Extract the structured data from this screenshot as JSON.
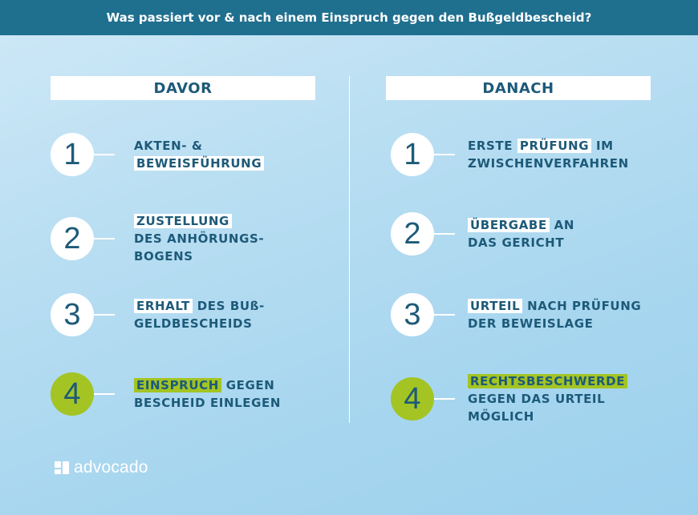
{
  "title": "Was passiert vor & nach einem Einspruch gegen den Bußgeldbescheid?",
  "columns": [
    {
      "header": "DAVOR",
      "steps": [
        {
          "number": "1",
          "lines": [
            [
              "AKTEN- &"
            ],
            [
              "BEWEISFÜHRUNG"
            ]
          ]
        },
        {
          "number": "2",
          "lines": [
            [
              "ZUSTELLUNG"
            ],
            [
              "DES ANHÖRUNGS-"
            ],
            [
              "BOGENS"
            ]
          ]
        },
        {
          "number": "3",
          "lines": [
            [
              "ERHALT",
              " DES BUß-"
            ],
            [
              "GELDBESCHEIDS"
            ]
          ]
        },
        {
          "number": "4",
          "lines": [
            [
              "EINSPRUCH",
              " GEGEN"
            ],
            [
              "BESCHEID EINLEGEN"
            ]
          ]
        }
      ]
    },
    {
      "header": "DANACH",
      "steps": [
        {
          "number": "1",
          "lines": [
            [
              "ERSTE ",
              "PRÜFUNG",
              " IM"
            ],
            [
              "ZWISCHENVERFAHREN"
            ]
          ]
        },
        {
          "number": "2",
          "lines": [
            [
              "ÜBERGABE",
              " AN"
            ],
            [
              "DAS GERICHT"
            ]
          ]
        },
        {
          "number": "3",
          "lines": [
            [
              "URTEIL",
              " NACH PRÜFUNG"
            ],
            [
              "DER BEWEISLAGE"
            ]
          ]
        },
        {
          "number": "4",
          "lines": [
            [
              "RECHTSBESCHWERDE"
            ],
            [
              "GEGEN DAS URTEIL"
            ],
            [
              "MÖGLICH"
            ]
          ]
        }
      ]
    }
  ],
  "logo": {
    "text": "advocado"
  },
  "colors": {
    "dark_blue": "#1d5a79",
    "top_bar": "#1f6f8f",
    "green_accent": "#a3c423",
    "white": "#ffffff"
  }
}
